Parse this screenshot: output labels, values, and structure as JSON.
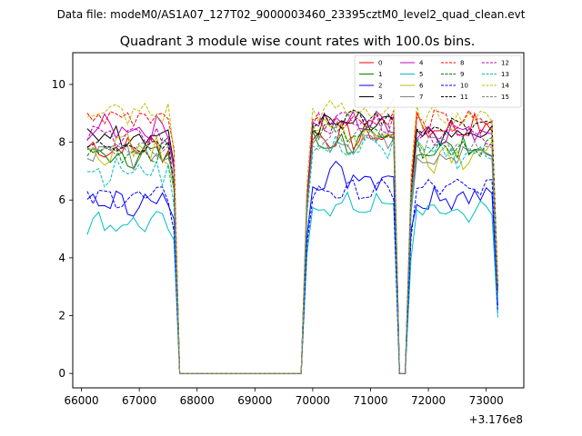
{
  "chart_data": {
    "type": "line",
    "suptitle": "Data file: modeM0/AS1A07_127T02_9000003460_23395cztM0_level2_quad_clean.evt",
    "title": "Quadrant 3 module wise count rates with 100.0s bins.",
    "xlabel": "",
    "ylabel": "",
    "x_offset_label": "+3.176e8",
    "xlim": [
      65850,
      73650
    ],
    "ylim": [
      -0.5,
      11.1
    ],
    "x_ticks": [
      66000,
      67000,
      68000,
      69000,
      70000,
      71000,
      72000,
      73000
    ],
    "x_tick_labels": [
      "66000",
      "67000",
      "68000",
      "69000",
      "70000",
      "71000",
      "72000",
      "73000"
    ],
    "y_ticks": [
      0,
      2,
      4,
      6,
      8,
      10
    ],
    "y_tick_labels": [
      "0",
      "2",
      "4",
      "6",
      "8",
      "10"
    ],
    "legend_position": "upper-right",
    "gaps": [
      {
        "last_on": 67600,
        "zero_start": 67700,
        "zero_end": 69800,
        "first_on": 69900
      },
      {
        "last_on": 71400,
        "zero_start": 71500,
        "zero_end": 71600,
        "first_on": 71700
      }
    ],
    "segments": [
      {
        "start": 66100,
        "count": 16
      },
      {
        "start": 69900,
        "count": 16
      },
      {
        "start": 71700,
        "count": 16
      }
    ],
    "series": [
      {
        "name": "0",
        "color": "#ff0000",
        "dash": "solid",
        "base": [
          7.8,
          8.2,
          8.5
        ],
        "amp": 0.4
      },
      {
        "name": "1",
        "color": "#008000",
        "dash": "solid",
        "base": [
          7.6,
          8.0,
          7.8
        ],
        "amp": 0.4
      },
      {
        "name": "2",
        "color": "#0000ff",
        "dash": "solid",
        "base": [
          5.9,
          6.9,
          6.2
        ],
        "amp": 0.45
      },
      {
        "name": "3",
        "color": "#000000",
        "dash": "solid",
        "base": [
          8.3,
          8.6,
          8.2
        ],
        "amp": 0.35
      },
      {
        "name": "4",
        "color": "#bf00bf",
        "dash": "solid",
        "base": [
          8.5,
          8.7,
          8.4
        ],
        "amp": 0.35
      },
      {
        "name": "5",
        "color": "#00bfbf",
        "dash": "solid",
        "base": [
          5.2,
          5.8,
          5.6
        ],
        "amp": 0.35
      },
      {
        "name": "6",
        "color": "#bfbf00",
        "dash": "solid",
        "base": [
          7.7,
          8.4,
          7.7
        ],
        "amp": 0.55
      },
      {
        "name": "7",
        "color": "#808080",
        "dash": "solid",
        "base": [
          7.6,
          8.1,
          7.6
        ],
        "amp": 0.4
      },
      {
        "name": "8",
        "color": "#ff0000",
        "dash": "dashed",
        "base": [
          8.9,
          8.8,
          8.7
        ],
        "amp": 0.35
      },
      {
        "name": "9",
        "color": "#008000",
        "dash": "dashed",
        "base": [
          7.7,
          8.4,
          7.9
        ],
        "amp": 0.35
      },
      {
        "name": "10",
        "color": "#0000ff",
        "dash": "dashed",
        "base": [
          6.1,
          6.3,
          6.4
        ],
        "amp": 0.3
      },
      {
        "name": "11",
        "color": "#000000",
        "dash": "dashed",
        "base": [
          8.0,
          8.8,
          8.5
        ],
        "amp": 0.35
      },
      {
        "name": "12",
        "color": "#bf00bf",
        "dash": "dashed",
        "base": [
          8.2,
          8.7,
          8.3
        ],
        "amp": 0.35
      },
      {
        "name": "13",
        "color": "#00bfbf",
        "dash": "dashed",
        "base": [
          7.0,
          7.8,
          7.6
        ],
        "amp": 0.4
      },
      {
        "name": "14",
        "color": "#bfbf00",
        "dash": "dashed",
        "base": [
          9.0,
          9.1,
          8.9
        ],
        "amp": 0.35
      },
      {
        "name": "15",
        "color": "#808080",
        "dash": "dashed",
        "base": [
          7.8,
          8.2,
          7.9
        ],
        "amp": 0.35
      }
    ]
  }
}
